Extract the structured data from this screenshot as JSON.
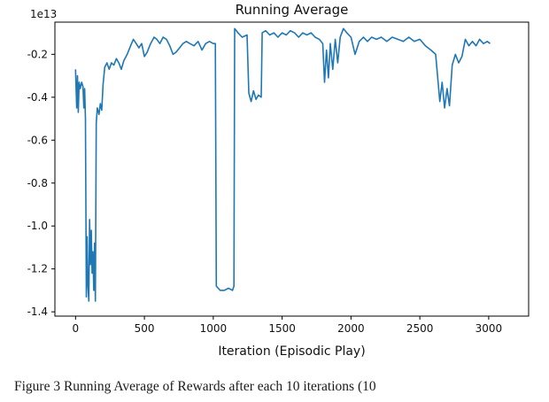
{
  "figure": {
    "title": "Running Average",
    "offset_text": "1e13",
    "xlabel": "Iteration (Episodic Play)",
    "caption": "Figure 3 Running Average of Rewards after each 10 iterations (10"
  },
  "chart_data": {
    "type": "line",
    "title": "Running Average",
    "xlabel": "Iteration (Episodic Play)",
    "ylabel": "",
    "y_offset_multiplier": "1e13",
    "xlim": [
      -150,
      3290
    ],
    "ylim": [
      -1.42,
      -0.05
    ],
    "xticks": [
      "0",
      "500",
      "1000",
      "1500",
      "2000",
      "2500",
      "3000"
    ],
    "yticks": [
      "-0.2",
      "-0.4",
      "-0.6",
      "-0.8",
      "-1.0",
      "-1.2",
      "-1.4"
    ],
    "grid": false,
    "legend": false,
    "line_color": "#1f77b4",
    "series": [
      {
        "name": "running-average",
        "points": [
          [
            0,
            -0.27
          ],
          [
            8,
            -0.45
          ],
          [
            14,
            -0.3
          ],
          [
            20,
            -0.47
          ],
          [
            26,
            -0.33
          ],
          [
            34,
            -0.36
          ],
          [
            44,
            -0.33
          ],
          [
            54,
            -0.35
          ],
          [
            60,
            -0.45
          ],
          [
            66,
            -0.36
          ],
          [
            72,
            -0.5
          ],
          [
            78,
            -1.33
          ],
          [
            84,
            -1.05
          ],
          [
            90,
            -1.28
          ],
          [
            96,
            -1.35
          ],
          [
            102,
            -0.97
          ],
          [
            108,
            -1.18
          ],
          [
            114,
            -1.02
          ],
          [
            120,
            -1.22
          ],
          [
            126,
            -1.12
          ],
          [
            132,
            -1.3
          ],
          [
            138,
            -1.08
          ],
          [
            144,
            -1.35
          ],
          [
            150,
            -0.52
          ],
          [
            158,
            -0.45
          ],
          [
            170,
            -0.48
          ],
          [
            180,
            -0.43
          ],
          [
            190,
            -0.46
          ],
          [
            200,
            -0.34
          ],
          [
            212,
            -0.26
          ],
          [
            228,
            -0.24
          ],
          [
            244,
            -0.27
          ],
          [
            260,
            -0.24
          ],
          [
            278,
            -0.25
          ],
          [
            296,
            -0.22
          ],
          [
            314,
            -0.24
          ],
          [
            332,
            -0.27
          ],
          [
            350,
            -0.23
          ],
          [
            375,
            -0.2
          ],
          [
            400,
            -0.16
          ],
          [
            420,
            -0.13
          ],
          [
            440,
            -0.15
          ],
          [
            460,
            -0.17
          ],
          [
            480,
            -0.15
          ],
          [
            500,
            -0.21
          ],
          [
            520,
            -0.19
          ],
          [
            545,
            -0.15
          ],
          [
            570,
            -0.12
          ],
          [
            590,
            -0.13
          ],
          [
            612,
            -0.15
          ],
          [
            636,
            -0.12
          ],
          [
            660,
            -0.13
          ],
          [
            684,
            -0.16
          ],
          [
            708,
            -0.2
          ],
          [
            730,
            -0.19
          ],
          [
            755,
            -0.17
          ],
          [
            780,
            -0.15
          ],
          [
            805,
            -0.14
          ],
          [
            830,
            -0.15
          ],
          [
            860,
            -0.16
          ],
          [
            890,
            -0.14
          ],
          [
            918,
            -0.18
          ],
          [
            945,
            -0.15
          ],
          [
            972,
            -0.14
          ],
          [
            1000,
            -0.15
          ],
          [
            1015,
            -0.15
          ],
          [
            1022,
            -1.28
          ],
          [
            1050,
            -1.3
          ],
          [
            1080,
            -1.3
          ],
          [
            1110,
            -1.29
          ],
          [
            1140,
            -1.3
          ],
          [
            1150,
            -1.28
          ],
          [
            1155,
            -0.08
          ],
          [
            1180,
            -0.1
          ],
          [
            1210,
            -0.12
          ],
          [
            1245,
            -0.11
          ],
          [
            1258,
            -0.38
          ],
          [
            1275,
            -0.42
          ],
          [
            1292,
            -0.37
          ],
          [
            1310,
            -0.41
          ],
          [
            1328,
            -0.39
          ],
          [
            1348,
            -0.4
          ],
          [
            1355,
            -0.1
          ],
          [
            1380,
            -0.09
          ],
          [
            1410,
            -0.11
          ],
          [
            1440,
            -0.1
          ],
          [
            1470,
            -0.12
          ],
          [
            1500,
            -0.1
          ],
          [
            1530,
            -0.11
          ],
          [
            1560,
            -0.09
          ],
          [
            1590,
            -0.1
          ],
          [
            1620,
            -0.12
          ],
          [
            1650,
            -0.1
          ],
          [
            1680,
            -0.11
          ],
          [
            1710,
            -0.1
          ],
          [
            1740,
            -0.12
          ],
          [
            1770,
            -0.13
          ],
          [
            1795,
            -0.15
          ],
          [
            1808,
            -0.33
          ],
          [
            1822,
            -0.18
          ],
          [
            1836,
            -0.31
          ],
          [
            1850,
            -0.15
          ],
          [
            1868,
            -0.27
          ],
          [
            1886,
            -0.13
          ],
          [
            1904,
            -0.24
          ],
          [
            1922,
            -0.12
          ],
          [
            1945,
            -0.08
          ],
          [
            1970,
            -0.1
          ],
          [
            2000,
            -0.12
          ],
          [
            2030,
            -0.2
          ],
          [
            2060,
            -0.14
          ],
          [
            2090,
            -0.12
          ],
          [
            2120,
            -0.14
          ],
          [
            2150,
            -0.12
          ],
          [
            2185,
            -0.13
          ],
          [
            2220,
            -0.12
          ],
          [
            2260,
            -0.14
          ],
          [
            2300,
            -0.12
          ],
          [
            2340,
            -0.13
          ],
          [
            2380,
            -0.14
          ],
          [
            2420,
            -0.12
          ],
          [
            2460,
            -0.14
          ],
          [
            2500,
            -0.13
          ],
          [
            2540,
            -0.16
          ],
          [
            2580,
            -0.18
          ],
          [
            2615,
            -0.2
          ],
          [
            2645,
            -0.42
          ],
          [
            2662,
            -0.33
          ],
          [
            2680,
            -0.45
          ],
          [
            2698,
            -0.36
          ],
          [
            2715,
            -0.44
          ],
          [
            2735,
            -0.25
          ],
          [
            2758,
            -0.2
          ],
          [
            2782,
            -0.24
          ],
          [
            2806,
            -0.21
          ],
          [
            2830,
            -0.13
          ],
          [
            2856,
            -0.16
          ],
          [
            2882,
            -0.14
          ],
          [
            2908,
            -0.16
          ],
          [
            2934,
            -0.13
          ],
          [
            2962,
            -0.15
          ],
          [
            2990,
            -0.14
          ],
          [
            3010,
            -0.15
          ]
        ]
      }
    ]
  }
}
